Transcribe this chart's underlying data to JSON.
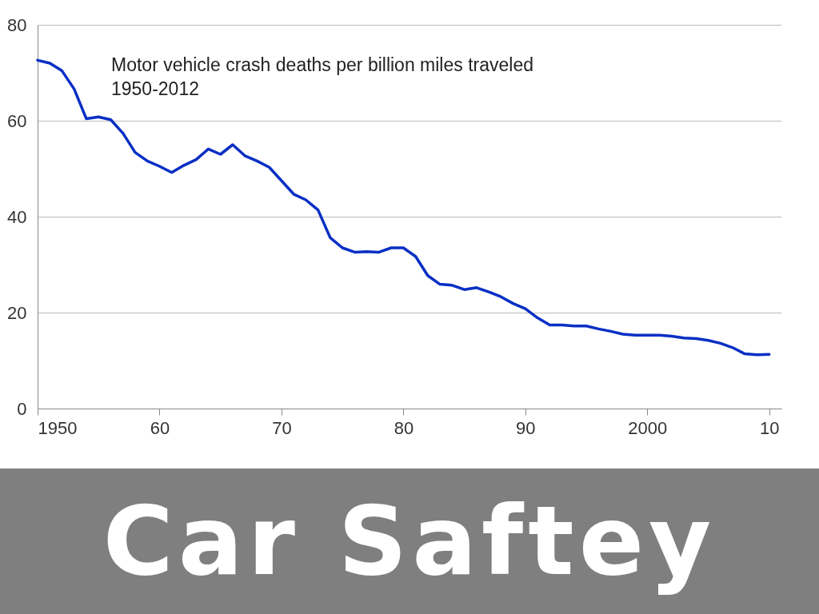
{
  "chart_data": {
    "type": "line",
    "title": "Car Saftey",
    "annotations": [
      "Motor vehicle crash deaths per billion miles traveled",
      "1950-2012"
    ],
    "x": [
      1950,
      1951,
      1952,
      1953,
      1954,
      1955,
      1956,
      1957,
      1958,
      1959,
      1960,
      1961,
      1962,
      1963,
      1964,
      1965,
      1966,
      1967,
      1968,
      1969,
      1970,
      1971,
      1972,
      1973,
      1974,
      1975,
      1976,
      1977,
      1978,
      1979,
      1980,
      1981,
      1982,
      1983,
      1984,
      1985,
      1986,
      1987,
      1988,
      1989,
      1990,
      1991,
      1992,
      1993,
      1994,
      1995,
      1996,
      1997,
      1998,
      1999,
      2000,
      2001,
      2002,
      2003,
      2004,
      2005,
      2006,
      2007,
      2008,
      2009,
      2010
    ],
    "series": [
      {
        "color": "#0a2fc4",
        "values": [
          72.6,
          72,
          70.4,
          66.6,
          60.4,
          60.8,
          60.2,
          57.4,
          53.4,
          51.6,
          50.5,
          49.2,
          50.7,
          51.9,
          54.1,
          53,
          55,
          52.7,
          51.6,
          50.3,
          47.5,
          44.7,
          43.5,
          41.4,
          35.6,
          33.5,
          32.6,
          32.7,
          32.6,
          33.5,
          33.5,
          31.7,
          27.7,
          25.9,
          25.7,
          24.8,
          25.2,
          24.3,
          23.3,
          21.9,
          20.8,
          18.9,
          17.4,
          17.4,
          17.2,
          17.2,
          16.6,
          16.1,
          15.5,
          15.3,
          15.3,
          15.3,
          15.1,
          14.7,
          14.6,
          14.2,
          13.6,
          12.7,
          11.4,
          11.2,
          11.3
        ]
      }
    ],
    "xlim": [
      1950,
      2011
    ],
    "xticks": [
      1950,
      {
        "value": 1960,
        "label": "60"
      },
      {
        "value": 1970,
        "label": "70"
      },
      {
        "value": 1980,
        "label": "80"
      },
      {
        "value": 1990,
        "label": "90"
      },
      2000,
      {
        "value": 2010,
        "label": "10"
      }
    ],
    "ylim": [
      0,
      80
    ],
    "yticks": [
      0,
      20,
      40,
      60,
      80
    ],
    "grid": "y",
    "marker": "none",
    "line_style": "solid"
  }
}
